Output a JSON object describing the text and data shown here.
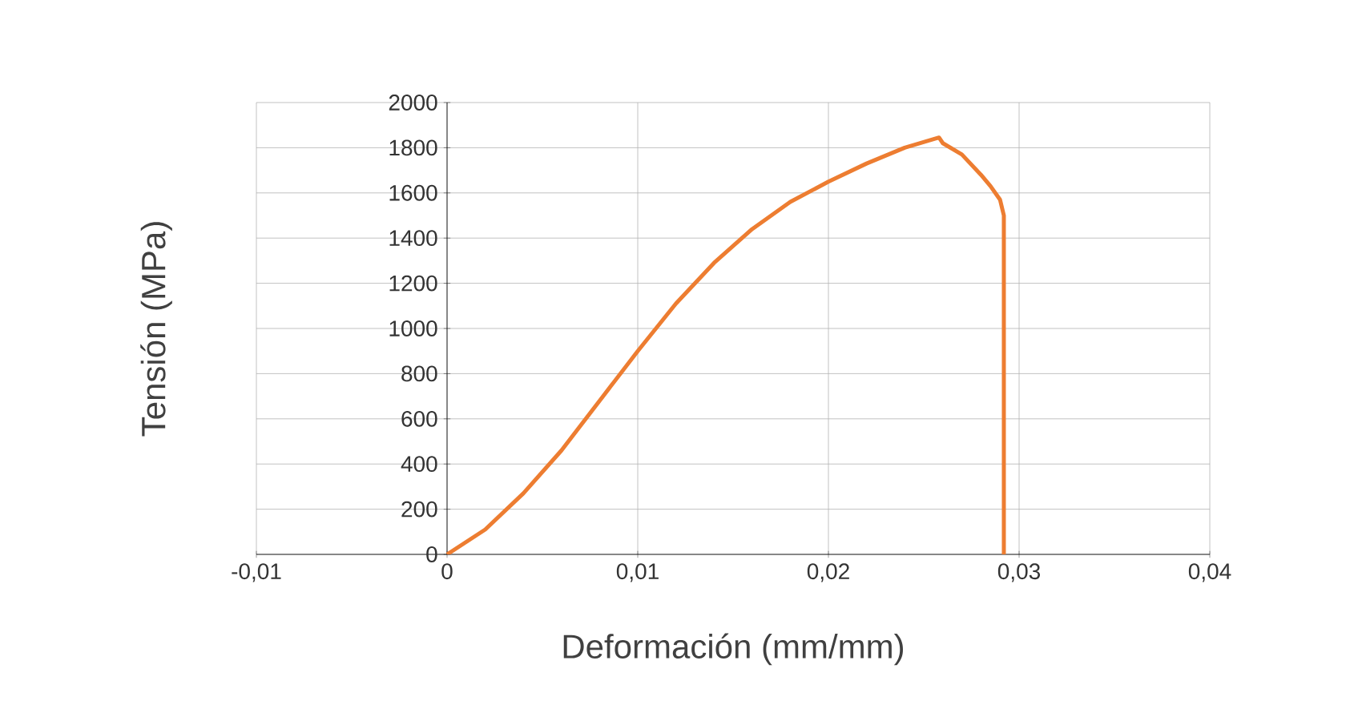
{
  "chart_data": {
    "type": "line",
    "xlabel": "Deformación (mm/mm)",
    "ylabel": "Tensión (MPa)",
    "xlim": [
      -0.01,
      0.04
    ],
    "ylim": [
      0,
      2000
    ],
    "xticks": [
      {
        "value": -0.01,
        "label": "-0,01"
      },
      {
        "value": 0,
        "label": "0"
      },
      {
        "value": 0.01,
        "label": "0,01"
      },
      {
        "value": 0.02,
        "label": "0,02"
      },
      {
        "value": 0.03,
        "label": "0,03"
      },
      {
        "value": 0.04,
        "label": "0,04"
      }
    ],
    "yticks": [
      0,
      200,
      400,
      600,
      800,
      1000,
      1200,
      1400,
      1600,
      1800,
      2000
    ],
    "grid": true,
    "marker": "none",
    "line_style": "solid",
    "series": [
      {
        "color": "#ed7d31",
        "x": [
          0,
          0.002,
          0.004,
          0.006,
          0.008,
          0.01,
          0.012,
          0.014,
          0.016,
          0.018,
          0.02,
          0.022,
          0.024,
          0.0258,
          0.026,
          0.027,
          0.028,
          0.0285,
          0.029,
          0.0292,
          0.0292
        ],
        "values": [
          0,
          110,
          270,
          460,
          680,
          900,
          1110,
          1290,
          1440,
          1560,
          1650,
          1730,
          1800,
          1845,
          1820,
          1770,
          1680,
          1630,
          1570,
          1500,
          0
        ]
      }
    ]
  }
}
